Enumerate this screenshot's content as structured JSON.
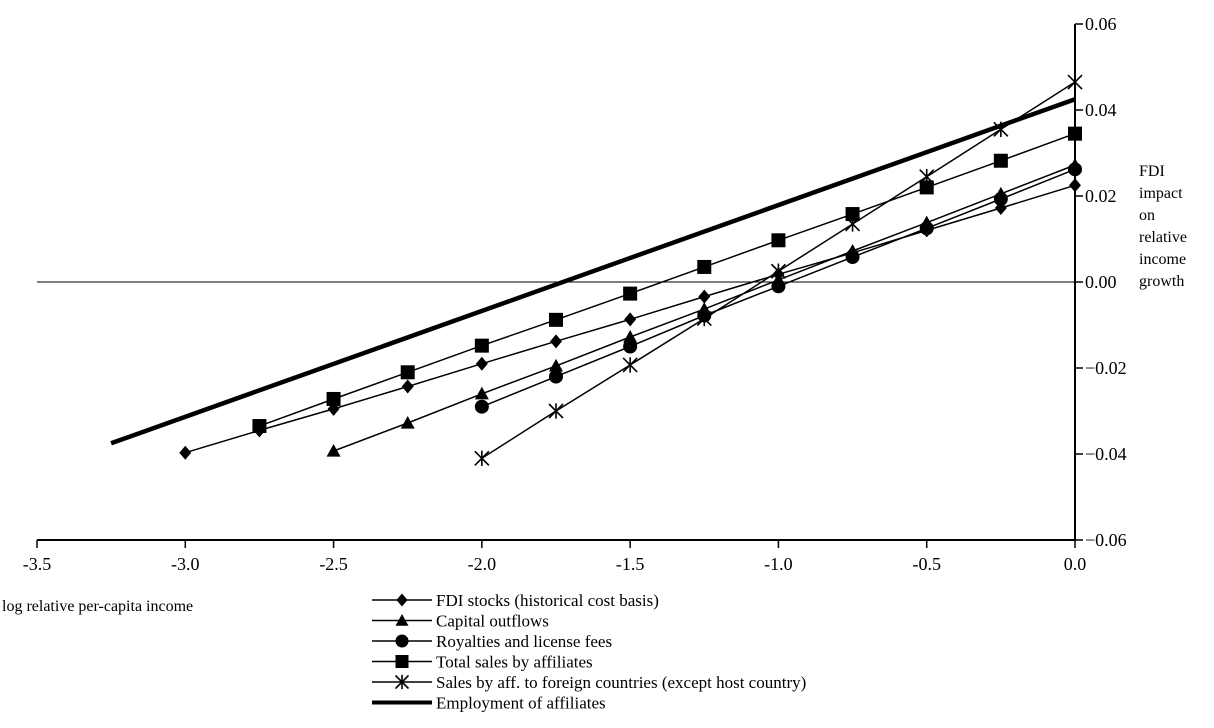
{
  "chart_data": {
    "type": "line",
    "xlabel": "log relative per-capita income",
    "ylabel": "FDI impact on relative income growth",
    "ylabel_lines": [
      "FDI",
      "impact",
      "on",
      "relative",
      "income",
      "growth"
    ],
    "xlim": [
      -3.5,
      0.0
    ],
    "ylim": [
      -0.06,
      0.06
    ],
    "xticks": [
      -3.5,
      -3.0,
      -2.5,
      -2.0,
      -1.5,
      -1.0,
      -0.5,
      0.0
    ],
    "xtick_labels": [
      "-3.5",
      "-3.0",
      "-2.5",
      "-2.0",
      "-1.5",
      "-1.0",
      "-0.5",
      "0.0"
    ],
    "yticks": [
      -0.06,
      -0.04,
      -0.02,
      0.0,
      0.02,
      0.04,
      0.06
    ],
    "ytick_labels": [
      "−0.06",
      "−0.04",
      "−0.02",
      "0.00",
      "0.02",
      "0.04",
      "0.06"
    ],
    "zero_line": true,
    "grid": false,
    "legend_position": "bottom",
    "series": [
      {
        "name": "FDI stocks (historical cost basis)",
        "marker": "diamond",
        "x": [
          -3.0,
          -2.75,
          -2.5,
          -2.25,
          -2.0,
          -1.75,
          -1.5,
          -1.25,
          -1.0,
          -0.75,
          -0.5,
          -0.25,
          0.0
        ],
        "y": [
          -0.0397,
          -0.0345,
          -0.0295,
          -0.0243,
          -0.019,
          -0.0138,
          -0.0087,
          -0.0034,
          0.0018,
          0.0068,
          0.012,
          0.0172,
          0.0225
        ]
      },
      {
        "name": "Capital outflows",
        "marker": "triangle",
        "x": [
          -2.5,
          -2.25,
          -2.0,
          -1.75,
          -1.5,
          -1.25,
          -1.0,
          -0.75,
          -0.5,
          -0.25,
          0.0
        ],
        "y": [
          -0.0393,
          -0.0328,
          -0.026,
          -0.0195,
          -0.0128,
          -0.0063,
          0.0005,
          0.0072,
          0.0138,
          0.0205,
          0.0272
        ]
      },
      {
        "name": "Royalties and license fees",
        "marker": "circle",
        "x": [
          -2.0,
          -1.75,
          -1.5,
          -1.25,
          -1.0,
          -0.75,
          -0.5,
          -0.25,
          0.0
        ],
        "y": [
          -0.029,
          -0.022,
          -0.015,
          -0.0078,
          -0.001,
          0.0058,
          0.0125,
          0.0193,
          0.0262
        ]
      },
      {
        "name": "Total sales by affiliates",
        "marker": "square",
        "x": [
          -2.75,
          -2.5,
          -2.25,
          -2.0,
          -1.75,
          -1.5,
          -1.25,
          -1.0,
          -0.75,
          -0.5,
          -0.25,
          0.0
        ],
        "y": [
          -0.0335,
          -0.0272,
          -0.021,
          -0.0148,
          -0.0088,
          -0.0027,
          0.0035,
          0.0097,
          0.0158,
          0.022,
          0.0282,
          0.0345
        ]
      },
      {
        "name": "Sales by aff. to foreign countries (except host country)",
        "marker": "star",
        "x": [
          -2.0,
          -1.75,
          -1.5,
          -1.25,
          -1.0,
          -0.75,
          -0.5,
          -0.25,
          0.0
        ],
        "y": [
          -0.041,
          -0.03,
          -0.0193,
          -0.0085,
          0.0025,
          0.0135,
          0.0245,
          0.0355,
          0.0465
        ]
      },
      {
        "name": "Employment of affiliates",
        "marker": "none",
        "thick": true,
        "x": [
          -3.25,
          0.0
        ],
        "y": [
          -0.0375,
          0.0425
        ]
      }
    ]
  }
}
